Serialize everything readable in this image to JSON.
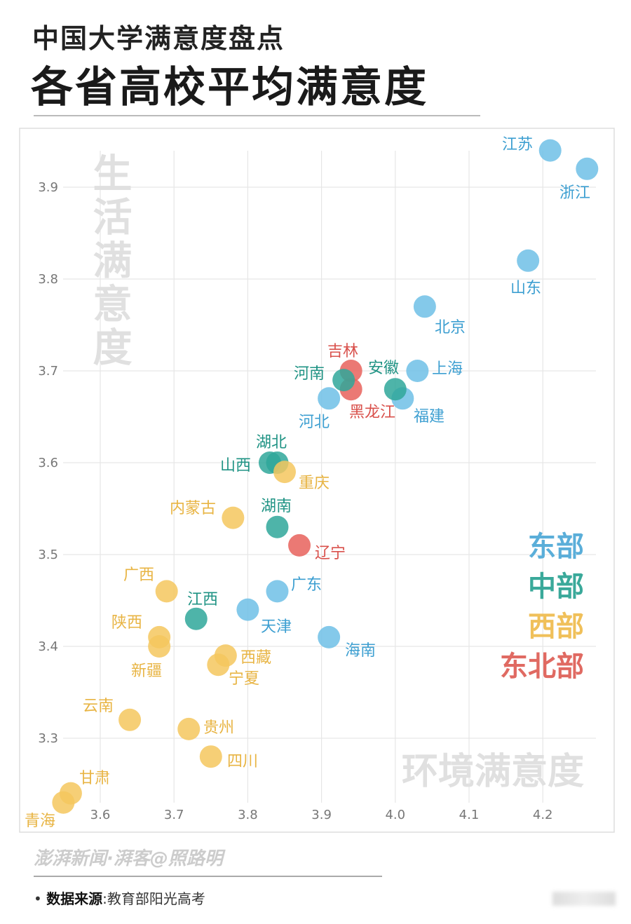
{
  "header": {
    "subtitle": "中国大学满意度盘点",
    "title": "各省高校平均满意度"
  },
  "chart_data": {
    "type": "scatter",
    "xlabel": "环境满意度",
    "ylabel": "生活满意度",
    "xlim": [
      3.52,
      4.28
    ],
    "ylim": [
      3.21,
      3.96
    ],
    "x_ticks": [
      "3.6",
      "3.7",
      "3.8",
      "3.9",
      "4.0",
      "4.1",
      "4.2"
    ],
    "y_ticks": [
      "3.9",
      "3.8",
      "3.7",
      "3.6",
      "3.5",
      "3.4",
      "3.3"
    ],
    "grid": true,
    "legend_placement": "right",
    "legend": [
      {
        "key": "east",
        "label": "东部",
        "color": "#6fbfe6",
        "text_color": "#5aaed9"
      },
      {
        "key": "central",
        "label": "中部",
        "color": "#2fa79a",
        "text_color": "#3aa99a"
      },
      {
        "key": "west",
        "label": "西部",
        "color": "#f5c75e",
        "text_color": "#f0c05a"
      },
      {
        "key": "northeast",
        "label": "东北部",
        "color": "#e8615c",
        "text_color": "#e06a62"
      }
    ],
    "points": [
      {
        "name": "江苏",
        "x": 4.21,
        "y": 3.94,
        "region": "east"
      },
      {
        "name": "浙江",
        "x": 4.26,
        "y": 3.92,
        "region": "east"
      },
      {
        "name": "山东",
        "x": 4.18,
        "y": 3.82,
        "region": "east"
      },
      {
        "name": "北京",
        "x": 4.04,
        "y": 3.77,
        "region": "east"
      },
      {
        "name": "上海",
        "x": 4.03,
        "y": 3.7,
        "region": "east"
      },
      {
        "name": "福建",
        "x": 4.01,
        "y": 3.67,
        "region": "east"
      },
      {
        "name": "安徽",
        "x": 4.0,
        "y": 3.68,
        "region": "central"
      },
      {
        "name": "吉林",
        "x": 3.94,
        "y": 3.7,
        "region": "northeast"
      },
      {
        "name": "黑龙江",
        "x": 3.94,
        "y": 3.68,
        "region": "northeast"
      },
      {
        "name": "河南",
        "x": 3.93,
        "y": 3.69,
        "region": "central"
      },
      {
        "name": "河北",
        "x": 3.91,
        "y": 3.67,
        "region": "east"
      },
      {
        "name": "湖北",
        "x": 3.84,
        "y": 3.6,
        "region": "central"
      },
      {
        "name": "山西",
        "x": 3.83,
        "y": 3.6,
        "region": "central"
      },
      {
        "name": "重庆",
        "x": 3.85,
        "y": 3.59,
        "region": "west"
      },
      {
        "name": "内蒙古",
        "x": 3.78,
        "y": 3.54,
        "region": "west"
      },
      {
        "name": "湖南",
        "x": 3.84,
        "y": 3.53,
        "region": "central"
      },
      {
        "name": "辽宁",
        "x": 3.87,
        "y": 3.51,
        "region": "northeast"
      },
      {
        "name": "广东",
        "x": 3.84,
        "y": 3.46,
        "region": "east"
      },
      {
        "name": "天津",
        "x": 3.8,
        "y": 3.44,
        "region": "east"
      },
      {
        "name": "海南",
        "x": 3.91,
        "y": 3.41,
        "region": "east"
      },
      {
        "name": "江西",
        "x": 3.73,
        "y": 3.43,
        "region": "central"
      },
      {
        "name": "广西",
        "x": 3.69,
        "y": 3.46,
        "region": "west"
      },
      {
        "name": "陕西",
        "x": 3.68,
        "y": 3.41,
        "region": "west"
      },
      {
        "name": "新疆",
        "x": 3.68,
        "y": 3.4,
        "region": "west"
      },
      {
        "name": "西藏",
        "x": 3.77,
        "y": 3.39,
        "region": "west"
      },
      {
        "name": "宁夏",
        "x": 3.76,
        "y": 3.38,
        "region": "west"
      },
      {
        "name": "云南",
        "x": 3.64,
        "y": 3.32,
        "region": "west"
      },
      {
        "name": "贵州",
        "x": 3.72,
        "y": 3.31,
        "region": "west"
      },
      {
        "name": "四川",
        "x": 3.75,
        "y": 3.28,
        "region": "west"
      },
      {
        "name": "甘肃",
        "x": 3.56,
        "y": 3.24,
        "region": "west"
      },
      {
        "name": "青海",
        "x": 3.55,
        "y": 3.23,
        "region": "west"
      }
    ]
  },
  "footer": {
    "credit": "澎湃新闻·湃客@照路明",
    "source_label": "数据来源",
    "source_value": "教育部阳光高考"
  }
}
